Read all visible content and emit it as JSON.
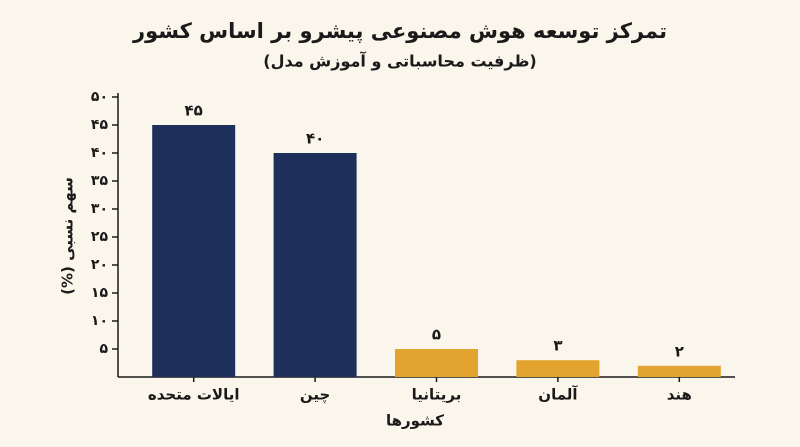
{
  "chart_data": {
    "type": "bar",
    "title": "تمرکز توسعه هوش مصنوعی پیشرو بر اساس کشور",
    "subtitle": "(ظرفیت محاسباتی و آموزش مدل)",
    "y_label": "سهم نسبی (%)",
    "x_label": "کشورها",
    "categories": [
      "ایالات متحده",
      "چین",
      "بریتانیا",
      "آلمان",
      "هند"
    ],
    "values": [
      45,
      40,
      5,
      3,
      2
    ],
    "value_labels": [
      "۴۵",
      "۴۰",
      "۵",
      "۳",
      "۲"
    ],
    "colors": [
      "#1f2f5b",
      "#1f2f5b",
      "#e2a42e",
      "#e2a42e",
      "#e2a42e"
    ],
    "ylim": [
      0,
      50
    ],
    "yticks": [
      {
        "value": 5,
        "label": "۵"
      },
      {
        "value": 10,
        "label": "۱۰"
      },
      {
        "value": 15,
        "label": "۱۵"
      },
      {
        "value": 20,
        "label": "۲۰"
      },
      {
        "value": 25,
        "label": "۲۵"
      },
      {
        "value": 30,
        "label": "۳۰"
      },
      {
        "value": 35,
        "label": "۳۵"
      },
      {
        "value": 40,
        "label": "۴۰"
      },
      {
        "value": 45,
        "label": "۴۵"
      },
      {
        "value": 50,
        "label": "۵۰"
      }
    ],
    "grid": false
  }
}
